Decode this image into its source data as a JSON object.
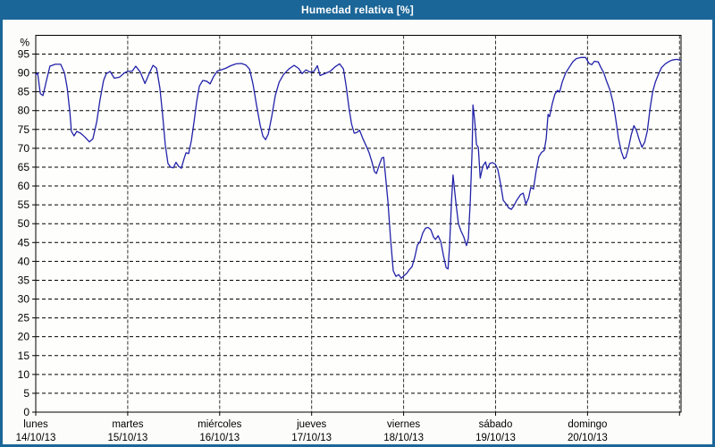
{
  "window": {
    "title": "Humedad relativa [%]"
  },
  "colors": {
    "titlebar_bg": "#1B6698",
    "frame": "#1B6698",
    "content_bg": "#FCFDFA",
    "plot_bg": "#FEFEFC",
    "line": "#2222AA",
    "grid_h": "#000000",
    "grid_v": "#333333",
    "axis": "#000000",
    "text": "#000000"
  },
  "chart_data": {
    "type": "line",
    "title": "Humedad relativa [%]",
    "ylabel": "%",
    "ylim": [
      0,
      100
    ],
    "xlim_hours": [
      0,
      168.4
    ],
    "grid": "horizontal dashed every 5 units; vertical line at each day boundary",
    "legend": "none",
    "y_ticks": [
      0,
      5,
      10,
      15,
      20,
      25,
      30,
      35,
      40,
      45,
      50,
      55,
      60,
      65,
      70,
      75,
      80,
      85,
      90,
      95
    ],
    "x_days": [
      {
        "name": "lunes",
        "date": "14/10/13"
      },
      {
        "name": "martes",
        "date": "15/10/13"
      },
      {
        "name": "miércoles",
        "date": "16/10/13"
      },
      {
        "name": "jueves",
        "date": "17/10/13"
      },
      {
        "name": "viernes",
        "date": "18/10/13"
      },
      {
        "name": "sábado",
        "date": "19/10/13"
      },
      {
        "name": "domingo",
        "date": "20/10/13"
      }
    ],
    "series": [
      {
        "name": "Humedad relativa",
        "color": "#2222AA",
        "x_unit": "hours since Monday 00:00",
        "points": [
          [
            0,
            89.5
          ],
          [
            0.5,
            90
          ],
          [
            1.2,
            84.5
          ],
          [
            1.9,
            84
          ],
          [
            2.8,
            88
          ],
          [
            3.7,
            91.8
          ],
          [
            5.1,
            92.3
          ],
          [
            6.5,
            92.3
          ],
          [
            7.5,
            90
          ],
          [
            8.2,
            86
          ],
          [
            8.9,
            79.5
          ],
          [
            9.3,
            74.5
          ],
          [
            10,
            73.3
          ],
          [
            10.7,
            74.5
          ],
          [
            11.7,
            74
          ],
          [
            12.8,
            73
          ],
          [
            14,
            71.7
          ],
          [
            14.9,
            72.5
          ],
          [
            15.9,
            77
          ],
          [
            16.8,
            83
          ],
          [
            17.7,
            88
          ],
          [
            18.4,
            89.8
          ],
          [
            19.4,
            90.4
          ],
          [
            20.5,
            88.6
          ],
          [
            21.9,
            88.9
          ],
          [
            23.1,
            90
          ],
          [
            24,
            90.4
          ],
          [
            25.2,
            90.5
          ],
          [
            26.1,
            91.8
          ],
          [
            27.3,
            90.2
          ],
          [
            28.5,
            87.2
          ],
          [
            29.6,
            89.8
          ],
          [
            30.6,
            92
          ],
          [
            31.5,
            91.3
          ],
          [
            32.4,
            86
          ],
          [
            33.1,
            79
          ],
          [
            33.8,
            71
          ],
          [
            34.5,
            66
          ],
          [
            35.2,
            65
          ],
          [
            35.9,
            64.8
          ],
          [
            36.6,
            66.3
          ],
          [
            37.3,
            65.2
          ],
          [
            38,
            64.7
          ],
          [
            38.7,
            67.2
          ],
          [
            39.2,
            68.8
          ],
          [
            39.9,
            68.6
          ],
          [
            40.6,
            72
          ],
          [
            41.3,
            77
          ],
          [
            42,
            82.5
          ],
          [
            42.7,
            86.5
          ],
          [
            43.6,
            88
          ],
          [
            44.6,
            87.8
          ],
          [
            45.5,
            87.1
          ],
          [
            46.4,
            89
          ],
          [
            47.4,
            90.5
          ],
          [
            48.3,
            90.8
          ],
          [
            49.5,
            91.2
          ],
          [
            50.9,
            91.9
          ],
          [
            52.3,
            92.4
          ],
          [
            53.7,
            92.5
          ],
          [
            54.8,
            92.1
          ],
          [
            55.8,
            91
          ],
          [
            56.7,
            87
          ],
          [
            57.6,
            81.5
          ],
          [
            58.6,
            76
          ],
          [
            59.3,
            73.2
          ],
          [
            60,
            72.3
          ],
          [
            60.7,
            73.8
          ],
          [
            61.6,
            78.5
          ],
          [
            62.5,
            84
          ],
          [
            63.5,
            87.5
          ],
          [
            64.6,
            89.5
          ],
          [
            66,
            91
          ],
          [
            67.4,
            92
          ],
          [
            68.6,
            91.2
          ],
          [
            69.5,
            89.8
          ],
          [
            70.5,
            90.8
          ],
          [
            71.6,
            90.2
          ],
          [
            72.6,
            90.4
          ],
          [
            73.5,
            91.9
          ],
          [
            74.2,
            89.3
          ],
          [
            75.4,
            89.8
          ],
          [
            76.8,
            90.4
          ],
          [
            78.2,
            91.7
          ],
          [
            79.3,
            92.4
          ],
          [
            80.3,
            91
          ],
          [
            81,
            86.5
          ],
          [
            81.7,
            81
          ],
          [
            82.4,
            76.5
          ],
          [
            83.1,
            74
          ],
          [
            83.8,
            74.2
          ],
          [
            84.5,
            74.8
          ],
          [
            85.4,
            72.5
          ],
          [
            86.3,
            70.5
          ],
          [
            87,
            68.8
          ],
          [
            87.7,
            66.5
          ],
          [
            88.4,
            63.8
          ],
          [
            88.9,
            63.3
          ],
          [
            89.6,
            65.5
          ],
          [
            90.3,
            67.4
          ],
          [
            90.8,
            67.6
          ],
          [
            91.2,
            63.5
          ],
          [
            91.9,
            56
          ],
          [
            92.6,
            46
          ],
          [
            93.3,
            37.5
          ],
          [
            94,
            36
          ],
          [
            94.7,
            36.5
          ],
          [
            95.4,
            35.5
          ],
          [
            96.1,
            36.2
          ],
          [
            96.8,
            36.8
          ],
          [
            97.5,
            37.8
          ],
          [
            98.2,
            38.6
          ],
          [
            98.9,
            41
          ],
          [
            99.6,
            44.3
          ],
          [
            100.3,
            45.2
          ],
          [
            101,
            47.5
          ],
          [
            101.7,
            48.8
          ],
          [
            102.4,
            49
          ],
          [
            103.1,
            48.4
          ],
          [
            103.8,
            46.5
          ],
          [
            104.3,
            45.8
          ],
          [
            105,
            46.8
          ],
          [
            105.7,
            45.2
          ],
          [
            106.4,
            41.5
          ],
          [
            107.1,
            38.3
          ],
          [
            107.6,
            38
          ],
          [
            108,
            44
          ],
          [
            108.5,
            56
          ],
          [
            108.9,
            62.9
          ],
          [
            109.6,
            56
          ],
          [
            110.3,
            50
          ],
          [
            111,
            48
          ],
          [
            111.7,
            46.5
          ],
          [
            112.4,
            44.2
          ],
          [
            112.9,
            46
          ],
          [
            113.4,
            56
          ],
          [
            113.9,
            70
          ],
          [
            114.1,
            81.5
          ],
          [
            114.6,
            77
          ],
          [
            115,
            71
          ],
          [
            115.5,
            70.2
          ],
          [
            116,
            62.1
          ],
          [
            116.7,
            65.3
          ],
          [
            117.4,
            66.4
          ],
          [
            117.8,
            64.5
          ],
          [
            118.5,
            66
          ],
          [
            119.2,
            66.2
          ],
          [
            119.9,
            65.8
          ],
          [
            120.6,
            64.3
          ],
          [
            121.3,
            60.5
          ],
          [
            122,
            56.2
          ],
          [
            122.7,
            55.3
          ],
          [
            123.4,
            54.2
          ],
          [
            124.1,
            53.8
          ],
          [
            124.8,
            54.8
          ],
          [
            125.5,
            56.2
          ],
          [
            126.5,
            57.7
          ],
          [
            127.2,
            58.1
          ],
          [
            127.9,
            55.2
          ],
          [
            128.6,
            56.8
          ],
          [
            129.2,
            59.6
          ],
          [
            129.9,
            59.2
          ],
          [
            130.6,
            64
          ],
          [
            131.3,
            67.8
          ],
          [
            132,
            68.9
          ],
          [
            132.7,
            69.4
          ],
          [
            133.2,
            72.5
          ],
          [
            133.7,
            79
          ],
          [
            134.1,
            78.4
          ],
          [
            134.8,
            81.8
          ],
          [
            135.5,
            84.4
          ],
          [
            136.2,
            85.4
          ],
          [
            136.7,
            84.9
          ],
          [
            137.4,
            87.6
          ],
          [
            138.3,
            90
          ],
          [
            139.3,
            91.6
          ],
          [
            140.2,
            93
          ],
          [
            141.1,
            93.8
          ],
          [
            142.3,
            94.1
          ],
          [
            143.5,
            94.1
          ],
          [
            144.4,
            92.5
          ],
          [
            145.1,
            92.2
          ],
          [
            145.8,
            93.1
          ],
          [
            146.8,
            92.9
          ],
          [
            147.5,
            91.4
          ],
          [
            148.2,
            90.1
          ],
          [
            148.9,
            88
          ],
          [
            149.8,
            85.6
          ],
          [
            150.7,
            82
          ],
          [
            151.4,
            77.5
          ],
          [
            152.1,
            72.5
          ],
          [
            152.8,
            69.2
          ],
          [
            153.5,
            67.2
          ],
          [
            154,
            67.6
          ],
          [
            154.7,
            70.2
          ],
          [
            155.4,
            73.6
          ],
          [
            156.1,
            76
          ],
          [
            156.8,
            74.6
          ],
          [
            157.5,
            72.2
          ],
          [
            158.2,
            70.3
          ],
          [
            158.9,
            71.6
          ],
          [
            159.6,
            74.6
          ],
          [
            160.3,
            80.5
          ],
          [
            161,
            85
          ],
          [
            161.7,
            87.6
          ],
          [
            162.4,
            89.4
          ],
          [
            163.3,
            91.4
          ],
          [
            164.3,
            92.4
          ],
          [
            165.2,
            93
          ],
          [
            166.1,
            93.4
          ],
          [
            167.3,
            93.6
          ],
          [
            168.4,
            93.3
          ]
        ]
      }
    ]
  }
}
